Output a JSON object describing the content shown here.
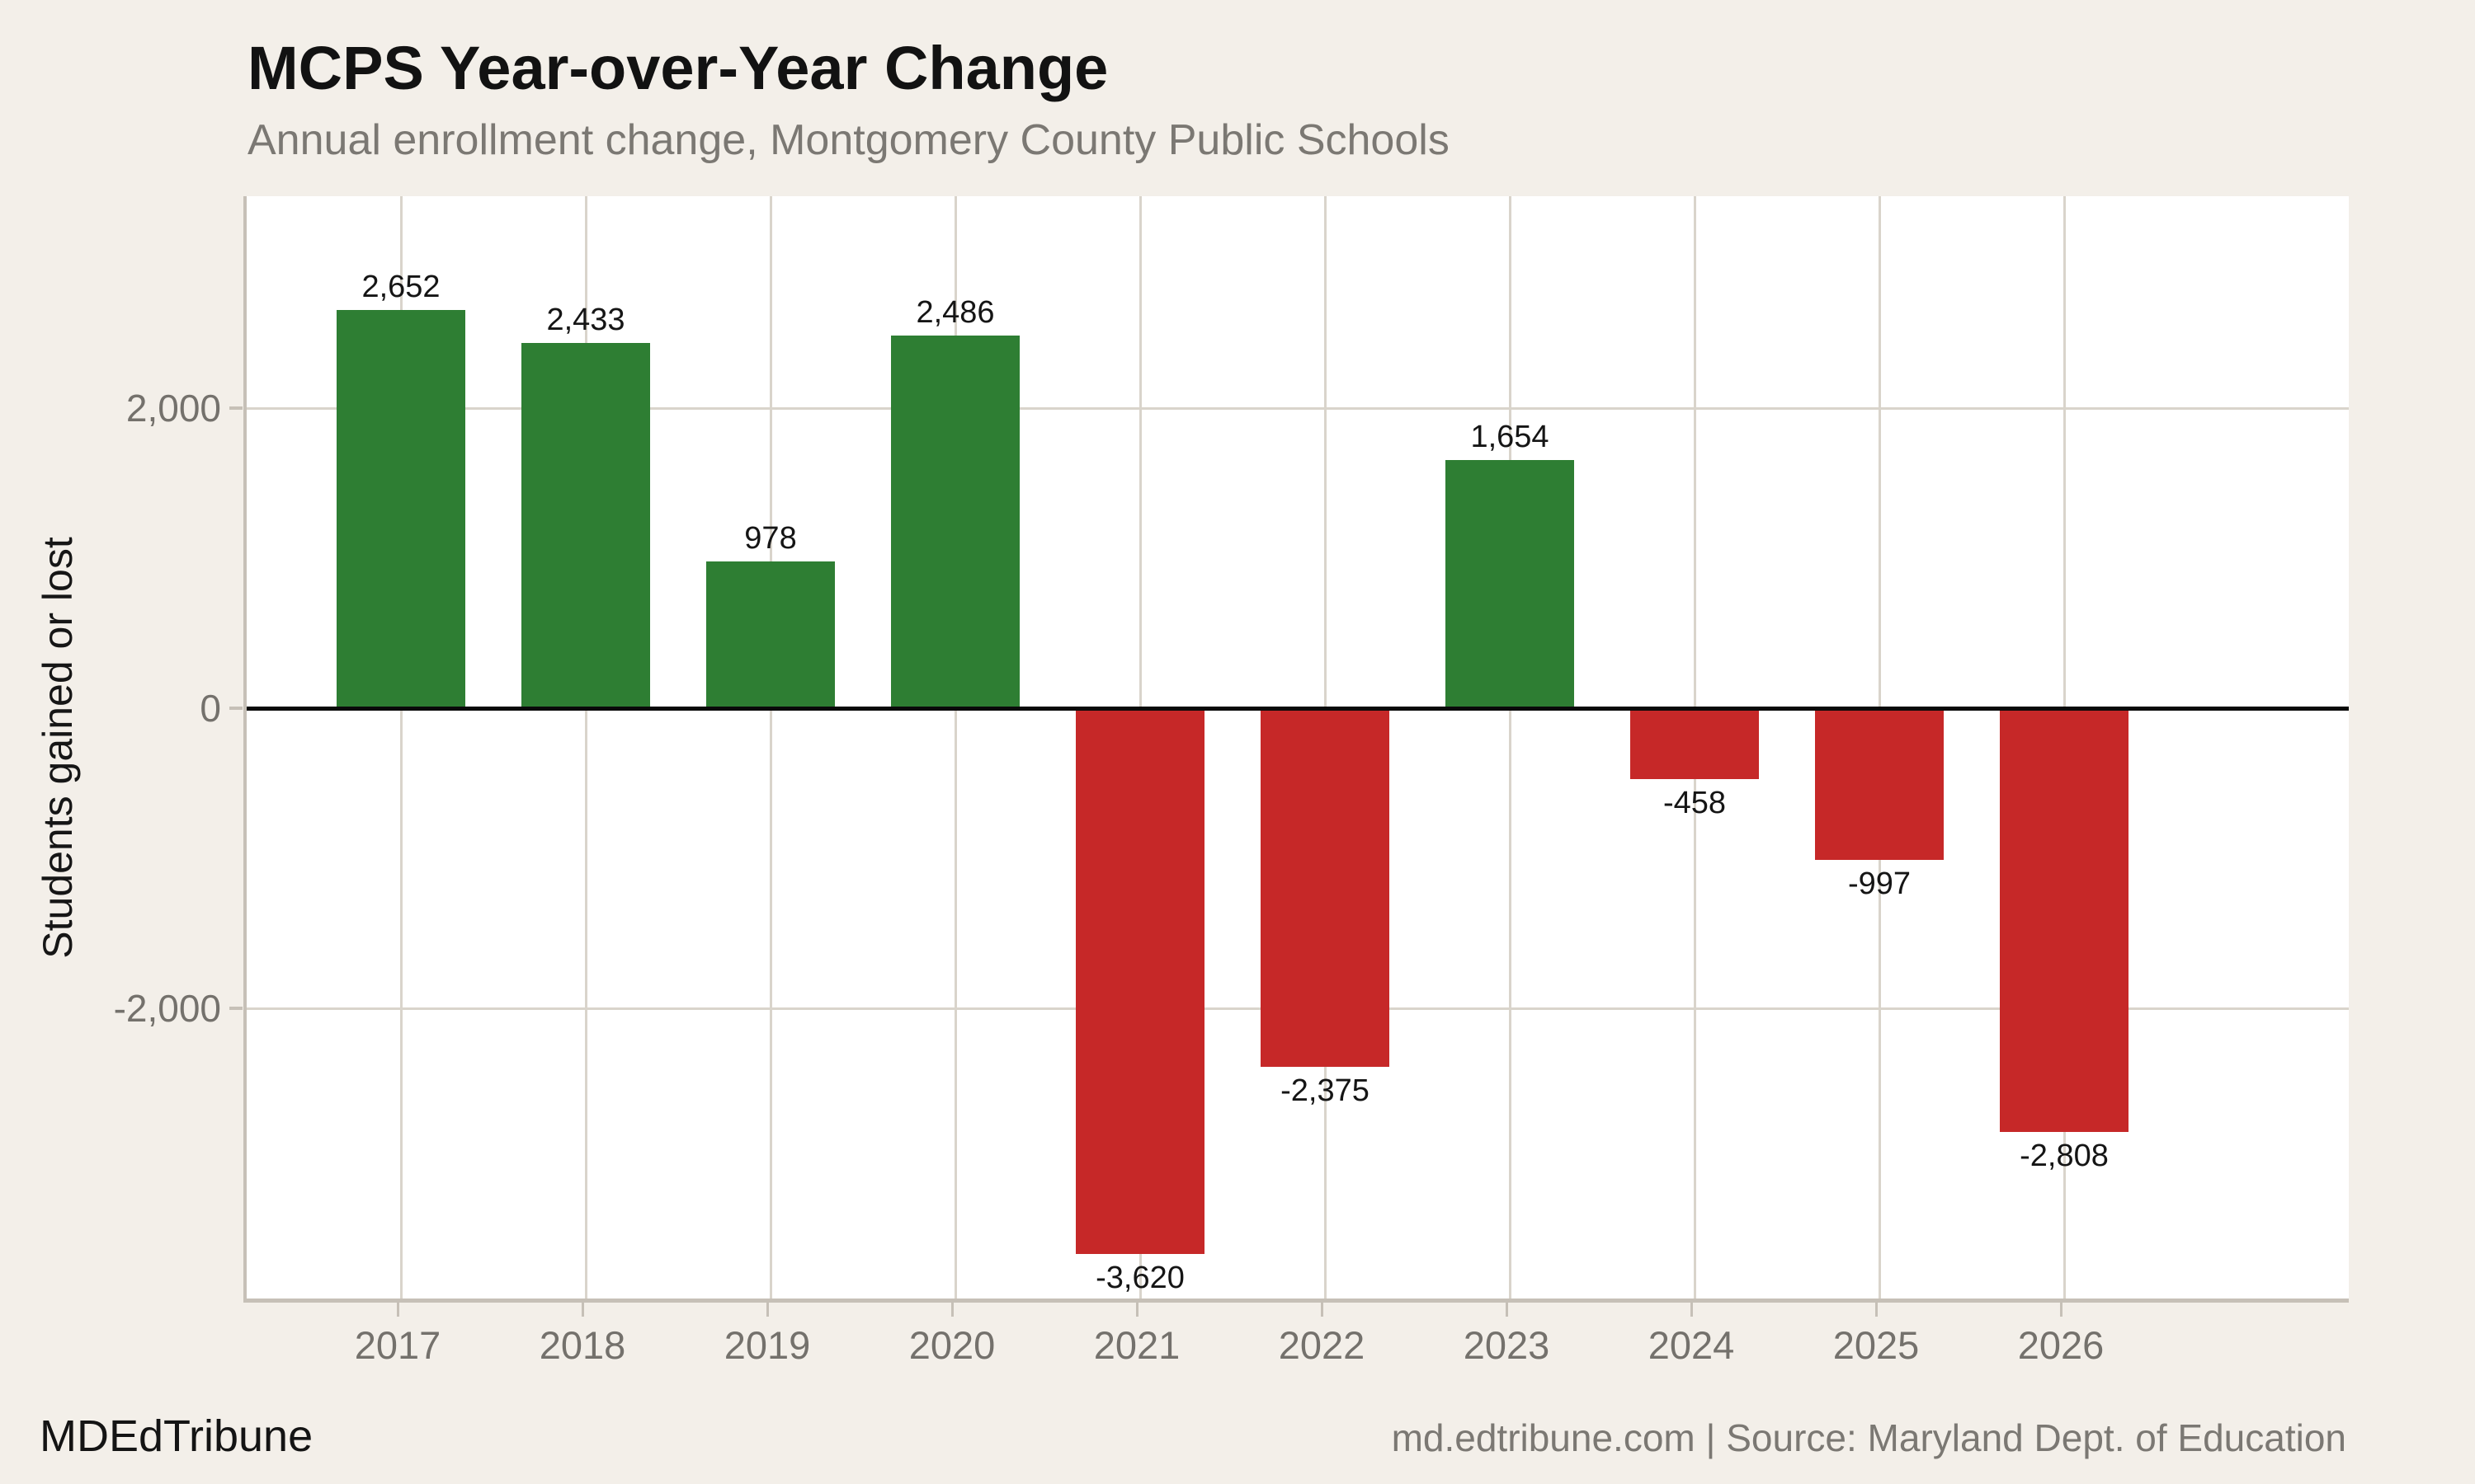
{
  "header": {
    "title": "MCPS Year-over-Year Change",
    "subtitle": "Annual enrollment change, Montgomery County Public Schools"
  },
  "footer": {
    "brand": "MDEdTribune",
    "source": "md.edtribune.com | Source: Maryland Dept. of Education"
  },
  "chart_data": {
    "type": "bar",
    "title": "MCPS Year-over-Year Change",
    "subtitle": "Annual enrollment change, Montgomery County Public Schools",
    "categories": [
      "2017",
      "2018",
      "2019",
      "2020",
      "2021",
      "2022",
      "2023",
      "2024",
      "2025",
      "2026"
    ],
    "values": [
      2652,
      2433,
      978,
      2486,
      -3620,
      -2375,
      1654,
      -458,
      -997,
      -2808
    ],
    "value_labels": [
      "2,652",
      "2,433",
      "978",
      "2,486",
      "-3,620",
      "-2,375",
      "1,654",
      "-458",
      "-997",
      "-2,808"
    ],
    "xlabel": "",
    "ylabel": "Students gained or lost",
    "ylim": [
      -3934,
      3412
    ],
    "yticks": [
      {
        "value": 2000,
        "label": "2,000"
      },
      {
        "value": 0,
        "label": "0"
      },
      {
        "value": -2000,
        "label": "-2,000"
      }
    ],
    "grid": "on",
    "legend": "none",
    "colors": {
      "positive": "#2e7e33",
      "negative": "#c62828",
      "background": "#f3efe9",
      "panel": "#ffffff",
      "gridline": "#d9d4cb",
      "axis": "#c6c0b7",
      "zero_line": "#0a0a0a",
      "muted_text": "#74716c"
    }
  }
}
